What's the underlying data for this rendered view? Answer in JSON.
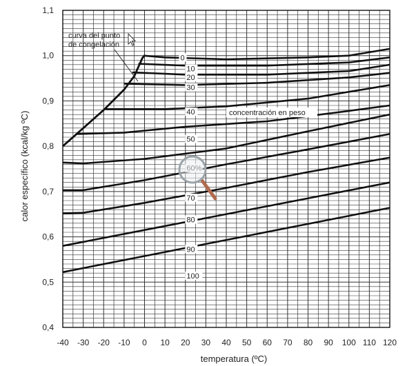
{
  "chart_data": {
    "type": "line",
    "xlabel": "temperatura (ºC)",
    "ylabel": "calor específico (kcal/kg ºC)",
    "xlim": [
      -40,
      120
    ],
    "ylim": [
      0.4,
      1.1
    ],
    "x_ticks": [
      -40,
      -30,
      -20,
      -10,
      0,
      10,
      20,
      30,
      40,
      50,
      60,
      70,
      80,
      90,
      100,
      110,
      120
    ],
    "y_ticks": [
      0.4,
      0.5,
      0.6,
      0.7,
      0.8,
      0.9,
      1.0,
      1.1
    ],
    "x_tick_labels": [
      "-40",
      "-30",
      "-20",
      "-10",
      "0",
      "10",
      "20",
      "30",
      "40",
      "50",
      "60",
      "70",
      "80",
      "90",
      "100",
      "110",
      "120"
    ],
    "y_tick_labels": [
      "0,4",
      "0,5",
      "0,6",
      "0,7",
      "0,8",
      "0,9",
      "1,0",
      "1,1"
    ],
    "grid": true,
    "series": [
      {
        "name": "0",
        "x": [
          -0.5,
          10,
          40,
          80,
          100,
          120
        ],
        "y": [
          1.0,
          0.996,
          0.992,
          0.996,
          1.0,
          1.015
        ]
      },
      {
        "name": "10",
        "x": [
          -3,
          20,
          60,
          100,
          120
        ],
        "y": [
          0.982,
          0.978,
          0.978,
          0.985,
          0.996
        ]
      },
      {
        "name": "20",
        "x": [
          -6,
          20,
          60,
          100,
          120
        ],
        "y": [
          0.963,
          0.958,
          0.958,
          0.966,
          0.98
        ]
      },
      {
        "name": "30",
        "x": [
          -10,
          20,
          60,
          100,
          120
        ],
        "y": [
          0.938,
          0.935,
          0.94,
          0.952,
          0.962
        ]
      },
      {
        "name": "40",
        "x": [
          -19,
          10,
          40,
          80,
          120
        ],
        "y": [
          0.882,
          0.882,
          0.888,
          0.905,
          0.935
        ]
      },
      {
        "name": "50",
        "x": [
          -33,
          -10,
          20,
          60,
          100,
          120
        ],
        "y": [
          0.827,
          0.83,
          0.843,
          0.855,
          0.878,
          0.89
        ]
      },
      {
        "name": "60%",
        "x": [
          -40,
          -30,
          0,
          40,
          80,
          120
        ],
        "y": [
          0.764,
          0.762,
          0.772,
          0.795,
          0.833,
          0.87
        ]
      },
      {
        "name": "70",
        "x": [
          -40,
          -30,
          0,
          40,
          80,
          120
        ],
        "y": [
          0.703,
          0.703,
          0.725,
          0.76,
          0.793,
          0.827
        ]
      },
      {
        "name": "80",
        "x": [
          -40,
          -30,
          0,
          40,
          80,
          120
        ],
        "y": [
          0.652,
          0.653,
          0.675,
          0.708,
          0.743,
          0.775
        ]
      },
      {
        "name": "90",
        "x": [
          -40,
          120
        ],
        "y": [
          0.58,
          0.72
        ]
      },
      {
        "name": "100",
        "x": [
          -40,
          120
        ],
        "y": [
          0.522,
          0.664
        ]
      }
    ],
    "freezing_curve": {
      "x": [
        -40,
        -30,
        -20,
        -10,
        -5,
        -3,
        -1,
        0
      ],
      "y": [
        0.8,
        0.84,
        0.88,
        0.925,
        0.955,
        0.975,
        0.995,
        1.0
      ]
    },
    "annotations": [
      {
        "text": "curva del punto",
        "name": "freezing-curve-label-line1"
      },
      {
        "text": "de congelación",
        "name": "freezing-curve-label-line2"
      },
      {
        "text": "concentración en peso",
        "name": "concentration-label"
      }
    ]
  }
}
